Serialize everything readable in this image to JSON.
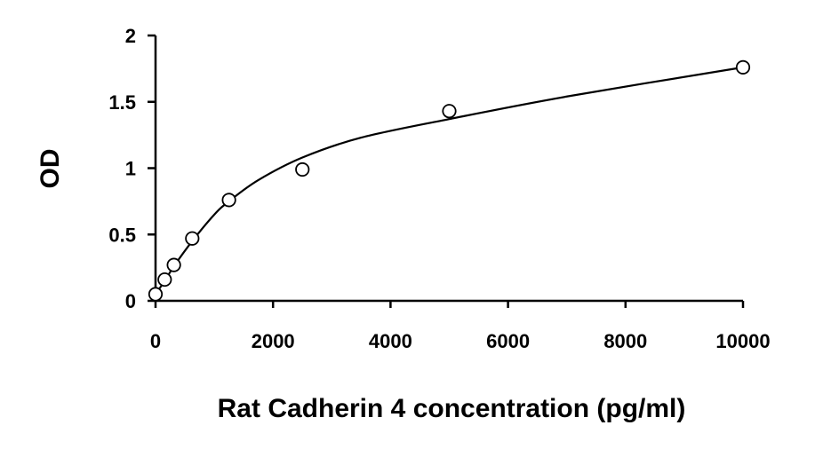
{
  "chart_data": {
    "type": "scatter",
    "title": "",
    "xlabel": "Rat Cadherin 4 concentration (pg/ml)",
    "ylabel": "OD",
    "xlim": [
      0,
      10000
    ],
    "ylim": [
      0,
      2
    ],
    "x_ticks": [
      0,
      2000,
      4000,
      6000,
      8000,
      10000
    ],
    "x_tick_labels": [
      "0",
      "2000",
      "4000",
      "6000",
      "8000",
      "10000"
    ],
    "y_ticks": [
      0,
      0.5,
      1,
      1.5,
      2
    ],
    "y_tick_labels": [
      "0",
      "0.5",
      "1",
      "1.5",
      "2"
    ],
    "grid": false,
    "series": [
      {
        "marker": "open-circle",
        "x": [
          0,
          156,
          312,
          625,
          1250,
          2500,
          5000,
          10000
        ],
        "y": [
          0.05,
          0.16,
          0.27,
          0.47,
          0.76,
          0.99,
          1.43,
          1.76
        ]
      },
      {
        "type": "line",
        "style": "smooth-fit",
        "x": [
          0,
          156,
          312,
          625,
          1000,
          1250,
          1750,
          2500,
          3500,
          5000,
          7000,
          10000
        ],
        "y": [
          0.05,
          0.15,
          0.26,
          0.45,
          0.65,
          0.75,
          0.91,
          1.08,
          1.23,
          1.37,
          1.54,
          1.76
        ]
      }
    ]
  }
}
